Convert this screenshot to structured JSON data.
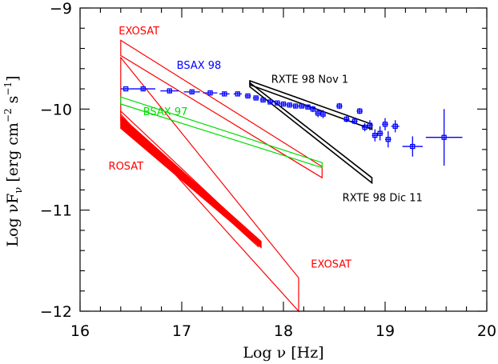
{
  "chart_data": {
    "type": "line",
    "title": "",
    "xlabel": "Log ν [Hz]",
    "ylabel_parts": {
      "main": "Log νF",
      "sub": "ν",
      "units_open": "[erg cm",
      "exp1": "−2",
      "mid": " s",
      "exp2": "−1",
      "close": "]"
    },
    "xlim": [
      16,
      20
    ],
    "ylim": [
      -12,
      -9
    ],
    "x_ticks": [
      {
        "value": 16,
        "label": "16"
      },
      {
        "value": 17,
        "label": "17"
      },
      {
        "value": 18,
        "label": "18"
      },
      {
        "value": 19,
        "label": "19"
      },
      {
        "value": 20,
        "label": "20"
      }
    ],
    "y_ticks": [
      {
        "value": -9,
        "label": "−9"
      },
      {
        "value": -10,
        "label": "−10"
      },
      {
        "value": -11,
        "label": "−11"
      },
      {
        "value": -12,
        "label": "−12"
      }
    ],
    "grid": false,
    "colors": {
      "exosat": "#ff0000",
      "rosat": "#ff0000",
      "bsax97": "#00dd00",
      "bsax98": "#0000ff",
      "rxte": "#000000"
    },
    "annotations": [
      {
        "text": "EXOSAT",
        "x": 16.38,
        "y": -9.26,
        "color": "#ff0000"
      },
      {
        "text": "BSAX 98",
        "x": 16.95,
        "y": -9.6,
        "color": "#0000ff"
      },
      {
        "text": "RXTE 98 Nov 1",
        "x": 17.88,
        "y": -9.74,
        "color": "#000000"
      },
      {
        "text": "BSAX 97",
        "x": 16.62,
        "y": -10.06,
        "color": "#00dd00"
      },
      {
        "text": "ROSAT",
        "x": 16.28,
        "y": -10.6,
        "color": "#ff0000"
      },
      {
        "text": "RXTE 98 Dic 11",
        "x": 18.58,
        "y": -10.91,
        "color": "#000000"
      },
      {
        "text": "EXOSAT",
        "x": 18.27,
        "y": -11.57,
        "color": "#ff0000"
      }
    ],
    "series": [
      {
        "name": "EXOSAT",
        "kind": "bowtie",
        "outline": [
          [
            16.4,
            -9.32
          ],
          [
            18.38,
            -10.57
          ],
          [
            18.38,
            -10.68
          ],
          [
            16.4,
            -9.47
          ]
        ]
      },
      {
        "name": "EXOSAT",
        "kind": "bowtie",
        "outline": [
          [
            16.4,
            -9.49
          ],
          [
            18.15,
            -11.67
          ],
          [
            18.15,
            -12.0
          ],
          [
            16.4,
            -10.05
          ]
        ]
      },
      {
        "name": "EXOSAT",
        "kind": "bowtie",
        "outline": [
          [
            16.4,
            -10.02
          ],
          [
            17.75,
            -11.3
          ],
          [
            17.75,
            -11.36
          ],
          [
            16.4,
            -10.12
          ]
        ]
      },
      {
        "name": "ROSAT",
        "kind": "band",
        "outline": [
          [
            16.4,
            -10.07
          ],
          [
            17.78,
            -11.31
          ],
          [
            17.78,
            -11.37
          ],
          [
            16.4,
            -10.19
          ]
        ]
      },
      {
        "name": "BSAX 97",
        "kind": "bowtie",
        "outline": [
          [
            16.4,
            -9.88
          ],
          [
            18.38,
            -10.53
          ],
          [
            18.38,
            -10.58
          ],
          [
            16.4,
            -9.95
          ]
        ]
      },
      {
        "name": "RXTE 98 Nov 1",
        "kind": "bowtie",
        "outline": [
          [
            17.67,
            -9.72
          ],
          [
            18.87,
            -10.15
          ],
          [
            18.87,
            -10.2
          ],
          [
            17.67,
            -9.76
          ]
        ]
      },
      {
        "name": "RXTE 98 Dic 11",
        "kind": "bowtie",
        "outline": [
          [
            17.67,
            -9.74
          ],
          [
            18.87,
            -10.68
          ],
          [
            18.87,
            -10.73
          ],
          [
            17.67,
            -9.78
          ]
        ]
      },
      {
        "name": "BSAX 98",
        "kind": "errorbar",
        "points": [
          {
            "x": 16.45,
            "y": -9.8,
            "xerr": 0.05,
            "yerr": 0.01
          },
          {
            "x": 16.62,
            "y": -9.8,
            "xerr": 0.12,
            "yerr": 0.015
          },
          {
            "x": 16.88,
            "y": -9.82,
            "xerr": 0.09,
            "yerr": 0.015
          },
          {
            "x": 17.1,
            "y": -9.83,
            "xerr": 0.08,
            "yerr": 0.015
          },
          {
            "x": 17.28,
            "y": -9.84,
            "xerr": 0.07,
            "yerr": 0.015
          },
          {
            "x": 17.42,
            "y": -9.85,
            "xerr": 0.05,
            "yerr": 0.015
          },
          {
            "x": 17.55,
            "y": -9.85,
            "xerr": 0.04,
            "yerr": 0.015
          },
          {
            "x": 17.65,
            "y": -9.87,
            "xerr": 0.03,
            "yerr": 0.015
          },
          {
            "x": 17.73,
            "y": -9.89,
            "xerr": 0.03,
            "yerr": 0.02
          },
          {
            "x": 17.8,
            "y": -9.91,
            "xerr": 0.03,
            "yerr": 0.02
          },
          {
            "x": 17.87,
            "y": -9.93,
            "xerr": 0.03,
            "yerr": 0.02
          },
          {
            "x": 17.94,
            "y": -9.94,
            "xerr": 0.03,
            "yerr": 0.02
          },
          {
            "x": 18.0,
            "y": -9.95,
            "xerr": 0.03,
            "yerr": 0.02
          },
          {
            "x": 18.06,
            "y": -9.96,
            "xerr": 0.03,
            "yerr": 0.02
          },
          {
            "x": 18.12,
            "y": -9.97,
            "xerr": 0.03,
            "yerr": 0.02
          },
          {
            "x": 18.18,
            "y": -9.97,
            "xerr": 0.03,
            "yerr": 0.02
          },
          {
            "x": 18.24,
            "y": -9.98,
            "xerr": 0.03,
            "yerr": 0.025
          },
          {
            "x": 18.29,
            "y": -10.0,
            "xerr": 0.03,
            "yerr": 0.03
          },
          {
            "x": 18.34,
            "y": -10.04,
            "xerr": 0.03,
            "yerr": 0.04
          },
          {
            "x": 18.39,
            "y": -10.05,
            "xerr": 0.02,
            "yerr": 0.04
          },
          {
            "x": 18.55,
            "y": -9.97,
            "xerr": 0.03,
            "yerr": 0.03
          },
          {
            "x": 18.62,
            "y": -10.1,
            "xerr": 0.03,
            "yerr": 0.03
          },
          {
            "x": 18.7,
            "y": -10.12,
            "xerr": 0.03,
            "yerr": 0.03
          },
          {
            "x": 18.75,
            "y": -10.02,
            "xerr": 0.03,
            "yerr": 0.03
          },
          {
            "x": 18.8,
            "y": -10.18,
            "xerr": 0.03,
            "yerr": 0.04
          },
          {
            "x": 18.85,
            "y": -10.16,
            "xerr": 0.03,
            "yerr": 0.05
          },
          {
            "x": 18.9,
            "y": -10.26,
            "xerr": 0.03,
            "yerr": 0.06
          },
          {
            "x": 18.95,
            "y": -10.24,
            "xerr": 0.03,
            "yerr": 0.07
          },
          {
            "x": 19.0,
            "y": -10.15,
            "xerr": 0.03,
            "yerr": 0.06
          },
          {
            "x": 19.03,
            "y": -10.3,
            "xerr": 0.03,
            "yerr": 0.08
          },
          {
            "x": 19.1,
            "y": -10.17,
            "xerr": 0.04,
            "yerr": 0.06
          },
          {
            "x": 19.27,
            "y": -10.37,
            "xerr": 0.1,
            "yerr": 0.1
          },
          {
            "x": 19.58,
            "y": -10.28,
            "xerr": 0.18,
            "yerr": 0.28
          }
        ]
      }
    ]
  }
}
